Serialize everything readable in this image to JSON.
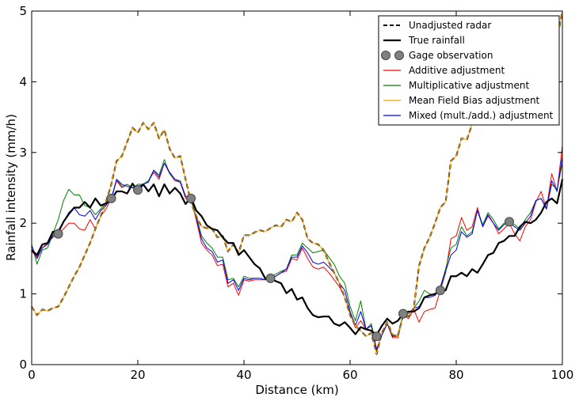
{
  "chart_data": {
    "type": "line",
    "xlabel": "Distance (km)",
    "ylabel": "Rainfall intensity (mm/h)",
    "xlim": [
      0,
      100
    ],
    "ylim": [
      0,
      5
    ],
    "xticks": [
      0,
      20,
      40,
      60,
      80,
      100
    ],
    "yticks": [
      0,
      1,
      2,
      3,
      4,
      5
    ],
    "x_tick_labels": [
      "0",
      "20",
      "40",
      "60",
      "80",
      "100"
    ],
    "y_tick_labels": [
      "0",
      "1",
      "2",
      "3",
      "4",
      "5"
    ],
    "grid": false,
    "legend_position": "top-right",
    "series": [
      {
        "name": "Unadjusted radar",
        "color": "#000000",
        "style": "dashed",
        "x": [
          0,
          1,
          2,
          3,
          4,
          5,
          6,
          7,
          8,
          9,
          10,
          11,
          12,
          13,
          14,
          15,
          16,
          17,
          18,
          19,
          20,
          21,
          22,
          23,
          24,
          25,
          26,
          27,
          28,
          29,
          30,
          31,
          32,
          33,
          34,
          35,
          36,
          37,
          38,
          39,
          40,
          41,
          42,
          43,
          44,
          45,
          46,
          47,
          48,
          49,
          50,
          51,
          52,
          53,
          54,
          55,
          56,
          57,
          58,
          59,
          60,
          61,
          62,
          63,
          64,
          65,
          66,
          67,
          68,
          69,
          70,
          71,
          72,
          73,
          74,
          75,
          76,
          77,
          78,
          79,
          80,
          81,
          82,
          83,
          84,
          85,
          86,
          87,
          88,
          89,
          90,
          91,
          92,
          93,
          94,
          95,
          96,
          97,
          98,
          99,
          100
        ],
        "y": [
          0.82,
          0.7,
          0.78,
          0.76,
          0.8,
          0.82,
          0.95,
          1.1,
          1.25,
          1.38,
          1.55,
          1.72,
          1.92,
          2.1,
          2.3,
          2.55,
          2.88,
          2.95,
          3.15,
          3.35,
          3.28,
          3.42,
          3.33,
          3.42,
          3.2,
          3.32,
          3.05,
          2.92,
          2.95,
          2.62,
          2.3,
          2.1,
          1.95,
          1.93,
          1.92,
          1.8,
          1.82,
          1.6,
          1.7,
          1.58,
          1.83,
          1.83,
          1.87,
          1.9,
          1.88,
          1.93,
          1.97,
          1.95,
          2.05,
          2.02,
          2.15,
          2.05,
          1.78,
          1.72,
          1.7,
          1.62,
          1.45,
          1.3,
          1.15,
          0.95,
          0.7,
          0.55,
          0.48,
          0.4,
          0.45,
          0.15,
          0.45,
          0.6,
          0.42,
          0.4,
          0.7,
          0.68,
          0.8,
          1.4,
          1.65,
          1.8,
          2.0,
          2.22,
          2.3,
          2.88,
          2.95,
          3.2,
          3.18,
          3.4,
          3.52,
          3.7,
          3.85,
          3.9,
          4.0,
          4.12,
          4.22,
          4.25,
          4.38,
          4.45,
          4.48,
          4.55,
          4.62,
          4.7,
          4.72,
          4.6,
          5.0
        ]
      },
      {
        "name": "True rainfall",
        "color": "#000000",
        "style": "solid-thick",
        "x": [
          0,
          1,
          2,
          3,
          4,
          5,
          6,
          7,
          8,
          9,
          10,
          11,
          12,
          13,
          14,
          15,
          16,
          17,
          18,
          19,
          20,
          21,
          22,
          23,
          24,
          25,
          26,
          27,
          28,
          29,
          30,
          31,
          32,
          33,
          34,
          35,
          36,
          37,
          38,
          39,
          40,
          41,
          42,
          43,
          44,
          45,
          46,
          47,
          48,
          49,
          50,
          51,
          52,
          53,
          54,
          55,
          56,
          57,
          58,
          59,
          60,
          61,
          62,
          63,
          64,
          65,
          66,
          67,
          68,
          69,
          70,
          71,
          72,
          73,
          74,
          75,
          76,
          77,
          78,
          79,
          80,
          81,
          82,
          83,
          84,
          85,
          86,
          87,
          88,
          89,
          90,
          91,
          92,
          93,
          94,
          95,
          96,
          97,
          98,
          99,
          100
        ],
        "y": [
          1.62,
          1.55,
          1.7,
          1.72,
          1.88,
          1.87,
          2.02,
          2.13,
          2.22,
          2.22,
          2.3,
          2.22,
          2.35,
          2.25,
          2.28,
          2.33,
          2.45,
          2.45,
          2.42,
          2.56,
          2.45,
          2.55,
          2.45,
          2.55,
          2.38,
          2.55,
          2.42,
          2.5,
          2.42,
          2.27,
          2.37,
          2.18,
          2.1,
          1.97,
          1.92,
          1.9,
          1.8,
          1.72,
          1.72,
          1.55,
          1.62,
          1.52,
          1.42,
          1.36,
          1.22,
          1.22,
          1.18,
          1.15,
          1.01,
          1.07,
          0.92,
          0.95,
          0.8,
          0.7,
          0.67,
          0.68,
          0.68,
          0.58,
          0.55,
          0.6,
          0.52,
          0.43,
          0.53,
          0.5,
          0.48,
          0.42,
          0.55,
          0.65,
          0.58,
          0.62,
          0.72,
          0.75,
          0.75,
          0.8,
          0.95,
          0.98,
          1.0,
          1.05,
          1.05,
          1.25,
          1.25,
          1.3,
          1.25,
          1.35,
          1.3,
          1.42,
          1.55,
          1.58,
          1.72,
          1.75,
          1.82,
          1.82,
          1.95,
          2.02,
          2.0,
          2.05,
          2.15,
          2.3,
          2.35,
          2.28,
          2.62
        ]
      },
      {
        "name": "Gage observation",
        "color": "#808080",
        "style": "markers",
        "x": [
          5,
          15,
          20,
          30,
          45,
          65,
          70,
          77,
          90
        ],
        "y": [
          1.85,
          2.35,
          2.47,
          2.35,
          1.22,
          0.4,
          0.72,
          1.05,
          2.02
        ]
      },
      {
        "name": "Additive adjustment",
        "color": "#ff0000",
        "style": "solid",
        "x": [
          0,
          1,
          2,
          3,
          4,
          5,
          6,
          7,
          8,
          9,
          10,
          11,
          12,
          13,
          14,
          15,
          16,
          17,
          18,
          19,
          20,
          21,
          22,
          23,
          24,
          25,
          26,
          27,
          28,
          29,
          30,
          31,
          32,
          33,
          34,
          35,
          36,
          37,
          38,
          39,
          40,
          41,
          42,
          43,
          44,
          45,
          46,
          47,
          48,
          49,
          50,
          51,
          52,
          53,
          54,
          55,
          56,
          57,
          58,
          59,
          60,
          61,
          62,
          63,
          64,
          65,
          66,
          67,
          68,
          69,
          70,
          71,
          72,
          73,
          74,
          75,
          76,
          77,
          78,
          79,
          80,
          81,
          82,
          83,
          84,
          85,
          86,
          87,
          88,
          89,
          90,
          91,
          92,
          93,
          94,
          95,
          96,
          97,
          98,
          99,
          100
        ],
        "y": [
          1.6,
          1.52,
          1.65,
          1.72,
          1.8,
          1.85,
          1.92,
          2.0,
          2.0,
          1.92,
          1.9,
          2.05,
          1.92,
          2.1,
          2.2,
          2.35,
          2.6,
          2.5,
          2.55,
          2.5,
          2.48,
          2.55,
          2.6,
          2.72,
          2.62,
          2.85,
          2.7,
          2.6,
          2.58,
          2.35,
          2.35,
          2.05,
          1.72,
          1.62,
          1.55,
          1.4,
          1.42,
          1.1,
          1.15,
          0.98,
          1.2,
          1.18,
          1.2,
          1.2,
          1.2,
          1.22,
          1.25,
          1.3,
          1.32,
          1.5,
          1.48,
          1.65,
          1.5,
          1.38,
          1.35,
          1.38,
          1.3,
          1.2,
          1.1,
          0.95,
          0.72,
          0.52,
          0.62,
          0.5,
          0.55,
          0.22,
          0.42,
          0.58,
          0.38,
          0.38,
          0.7,
          0.65,
          0.78,
          0.6,
          0.75,
          0.78,
          0.8,
          1.05,
          1.3,
          1.78,
          1.82,
          2.08,
          1.9,
          1.95,
          2.22,
          1.95,
          2.1,
          2.0,
          1.85,
          1.92,
          2.0,
          1.85,
          1.75,
          1.95,
          2.05,
          2.3,
          2.45,
          2.2,
          2.7,
          2.45,
          3.1
        ]
      },
      {
        "name": "Multiplicative adjustment",
        "color": "#008000",
        "style": "solid",
        "x": [
          0,
          1,
          2,
          3,
          4,
          5,
          6,
          7,
          8,
          9,
          10,
          11,
          12,
          13,
          14,
          15,
          16,
          17,
          18,
          19,
          20,
          21,
          22,
          23,
          24,
          25,
          26,
          27,
          28,
          29,
          30,
          31,
          32,
          33,
          34,
          35,
          36,
          37,
          38,
          39,
          40,
          41,
          42,
          43,
          44,
          45,
          46,
          47,
          48,
          49,
          50,
          51,
          52,
          53,
          54,
          55,
          56,
          57,
          58,
          59,
          60,
          61,
          62,
          63,
          64,
          65,
          66,
          67,
          68,
          69,
          70,
          71,
          72,
          73,
          74,
          75,
          76,
          77,
          78,
          79,
          80,
          81,
          82,
          83,
          84,
          85,
          86,
          87,
          88,
          89,
          90,
          91,
          92,
          93,
          94,
          95,
          96,
          97,
          98,
          99,
          100
        ],
        "y": [
          1.7,
          1.42,
          1.62,
          1.65,
          1.85,
          2.05,
          2.32,
          2.48,
          2.4,
          2.4,
          2.25,
          2.22,
          2.12,
          2.2,
          2.3,
          2.32,
          2.62,
          2.52,
          2.55,
          2.5,
          2.55,
          2.55,
          2.6,
          2.75,
          2.68,
          2.9,
          2.7,
          2.62,
          2.6,
          2.38,
          2.35,
          2.1,
          1.82,
          1.72,
          1.65,
          1.52,
          1.52,
          1.2,
          1.22,
          1.1,
          1.25,
          1.22,
          1.22,
          1.22,
          1.2,
          1.25,
          1.28,
          1.32,
          1.35,
          1.55,
          1.55,
          1.72,
          1.65,
          1.58,
          1.6,
          1.62,
          1.52,
          1.42,
          1.25,
          1.15,
          0.82,
          0.62,
          0.9,
          0.5,
          0.58,
          0.2,
          0.42,
          0.58,
          0.4,
          0.42,
          0.72,
          0.72,
          0.8,
          0.9,
          1.05,
          1.0,
          0.98,
          1.1,
          1.35,
          1.65,
          1.7,
          1.95,
          1.82,
          1.88,
          2.18,
          1.98,
          2.15,
          2.05,
          1.92,
          2.0,
          2.0,
          1.98,
          1.92,
          2.05,
          2.15,
          2.32,
          2.35,
          2.2,
          2.55,
          2.48,
          2.85
        ]
      },
      {
        "name": "Mean Field Bias adjustment",
        "color": "#ffa500",
        "style": "solid",
        "x": [
          0,
          1,
          2,
          3,
          4,
          5,
          6,
          7,
          8,
          9,
          10,
          11,
          12,
          13,
          14,
          15,
          16,
          17,
          18,
          19,
          20,
          21,
          22,
          23,
          24,
          25,
          26,
          27,
          28,
          29,
          30,
          31,
          32,
          33,
          34,
          35,
          36,
          37,
          38,
          39,
          40,
          41,
          42,
          43,
          44,
          45,
          46,
          47,
          48,
          49,
          50,
          51,
          52,
          53,
          54,
          55,
          56,
          57,
          58,
          59,
          60,
          61,
          62,
          63,
          64,
          65,
          66,
          67,
          68,
          69,
          70,
          71,
          72,
          73,
          74,
          75,
          76,
          77,
          78,
          79,
          80,
          81,
          82,
          83,
          84,
          85,
          86,
          87,
          88,
          89,
          90,
          91,
          92,
          93,
          94,
          95,
          96,
          97,
          98,
          99,
          100
        ],
        "y": [
          0.82,
          0.7,
          0.78,
          0.76,
          0.8,
          0.82,
          0.95,
          1.1,
          1.25,
          1.38,
          1.55,
          1.72,
          1.92,
          2.1,
          2.3,
          2.55,
          2.88,
          2.95,
          3.15,
          3.35,
          3.28,
          3.42,
          3.33,
          3.42,
          3.2,
          3.32,
          3.05,
          2.92,
          2.95,
          2.62,
          2.3,
          2.1,
          1.95,
          1.93,
          1.92,
          1.8,
          1.82,
          1.6,
          1.7,
          1.58,
          1.83,
          1.83,
          1.87,
          1.9,
          1.88,
          1.93,
          1.97,
          1.95,
          2.05,
          2.02,
          2.15,
          2.05,
          1.78,
          1.72,
          1.7,
          1.62,
          1.45,
          1.3,
          1.15,
          0.95,
          0.7,
          0.55,
          0.48,
          0.4,
          0.45,
          0.15,
          0.45,
          0.6,
          0.42,
          0.4,
          0.7,
          0.68,
          0.8,
          1.4,
          1.65,
          1.8,
          2.0,
          2.22,
          2.3,
          2.88,
          2.95,
          3.2,
          3.18,
          3.4,
          3.52,
          3.7,
          3.85,
          3.9,
          4.0,
          4.12,
          4.22,
          4.25,
          4.38,
          4.45,
          4.48,
          4.55,
          4.62,
          4.7,
          4.72,
          4.6,
          5.0
        ]
      },
      {
        "name": "Mixed (mult./add.) adjustment",
        "color": "#0000ff",
        "style": "solid",
        "x": [
          0,
          1,
          2,
          3,
          4,
          5,
          6,
          7,
          8,
          9,
          10,
          11,
          12,
          13,
          14,
          15,
          16,
          17,
          18,
          19,
          20,
          21,
          22,
          23,
          24,
          25,
          26,
          27,
          28,
          29,
          30,
          31,
          32,
          33,
          34,
          35,
          36,
          37,
          38,
          39,
          40,
          41,
          42,
          43,
          44,
          45,
          46,
          47,
          48,
          49,
          50,
          51,
          52,
          53,
          54,
          55,
          56,
          57,
          58,
          59,
          60,
          61,
          62,
          63,
          64,
          65,
          66,
          67,
          68,
          69,
          70,
          71,
          72,
          73,
          74,
          75,
          76,
          77,
          78,
          79,
          80,
          81,
          82,
          83,
          84,
          85,
          86,
          87,
          88,
          89,
          90,
          91,
          92,
          93,
          94,
          95,
          96,
          97,
          98,
          99,
          100
        ],
        "y": [
          1.68,
          1.5,
          1.65,
          1.7,
          1.82,
          1.9,
          2.02,
          2.15,
          2.22,
          2.12,
          2.1,
          2.18,
          2.05,
          2.18,
          2.25,
          2.35,
          2.62,
          2.55,
          2.52,
          2.5,
          2.52,
          2.55,
          2.58,
          2.75,
          2.65,
          2.85,
          2.72,
          2.62,
          2.58,
          2.38,
          2.35,
          2.08,
          1.78,
          1.65,
          1.6,
          1.45,
          1.48,
          1.15,
          1.2,
          1.05,
          1.22,
          1.2,
          1.22,
          1.22,
          1.2,
          1.25,
          1.25,
          1.3,
          1.35,
          1.52,
          1.52,
          1.68,
          1.58,
          1.45,
          1.42,
          1.45,
          1.38,
          1.3,
          1.15,
          1.05,
          0.75,
          0.55,
          0.75,
          0.5,
          0.55,
          0.2,
          0.42,
          0.58,
          0.4,
          0.4,
          0.7,
          0.68,
          0.8,
          0.82,
          0.95,
          0.95,
          0.98,
          1.08,
          1.32,
          1.55,
          1.62,
          1.88,
          1.8,
          1.85,
          2.18,
          1.95,
          2.12,
          2.0,
          1.9,
          1.98,
          2.0,
          1.95,
          1.9,
          2.0,
          2.1,
          2.32,
          2.35,
          2.2,
          2.6,
          2.45,
          2.95
        ]
      }
    ]
  }
}
